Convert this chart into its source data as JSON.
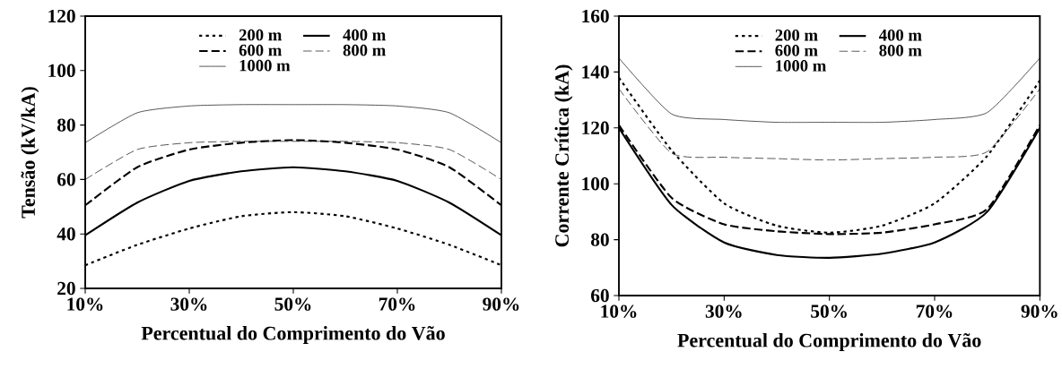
{
  "chart_data": [
    {
      "type": "line",
      "xlabel": "Percentual do Comprimento do Vão",
      "ylabel": "Tensão (kV/kA)",
      "x": [
        10,
        20,
        30,
        40,
        50,
        60,
        70,
        80,
        90
      ],
      "xlim": [
        10,
        90
      ],
      "ylim": [
        20,
        120
      ],
      "xticks": [
        {
          "value": 10,
          "label": "10%"
        },
        {
          "value": 30,
          "label": "30%"
        },
        {
          "value": 50,
          "label": "50%"
        },
        {
          "value": 70,
          "label": "70%"
        },
        {
          "value": 90,
          "label": "90%"
        }
      ],
      "yticks": [
        20,
        40,
        60,
        80,
        100,
        120
      ],
      "legend": "top",
      "grid": false,
      "marker": "none",
      "series": [
        {
          "name": "200 m",
          "color": "#000000",
          "line_style": "dotted",
          "values": [
            28.5,
            36,
            42,
            46.5,
            48,
            46.5,
            42,
            36,
            28.5
          ]
        },
        {
          "name": "400 m",
          "color": "#000000",
          "line_style": "solid",
          "values": [
            39.5,
            51.5,
            59.5,
            63,
            64.5,
            63,
            59.5,
            51.5,
            39.5
          ]
        },
        {
          "name": "600 m",
          "color": "#000000",
          "line_style": "dashed",
          "values": [
            50.5,
            64.5,
            71,
            73.5,
            74.5,
            73.5,
            71,
            64.5,
            50.5
          ]
        },
        {
          "name": "800 m",
          "color": "#000000",
          "line_style": "dashed",
          "values": [
            60,
            71,
            73.5,
            74,
            74,
            74,
            73.5,
            71,
            60
          ]
        },
        {
          "name": "1000 m",
          "color": "#000000",
          "line_style": "solid",
          "values": [
            73.5,
            84.5,
            87,
            87.5,
            87.5,
            87.5,
            87,
            84.5,
            73.5
          ]
        }
      ]
    },
    {
      "type": "line",
      "xlabel": "Percentual do Comprimento do Vão",
      "ylabel": "Corrente Crítica (kA)",
      "x": [
        10,
        20,
        30,
        40,
        50,
        60,
        70,
        80,
        90
      ],
      "xlim": [
        10,
        90
      ],
      "ylim": [
        60,
        160
      ],
      "xticks": [
        {
          "value": 10,
          "label": "10%"
        },
        {
          "value": 30,
          "label": "30%"
        },
        {
          "value": 50,
          "label": "50%"
        },
        {
          "value": 70,
          "label": "70%"
        },
        {
          "value": 90,
          "label": "90%"
        }
      ],
      "yticks": [
        60,
        80,
        100,
        120,
        140,
        160
      ],
      "legend": "top",
      "grid": false,
      "marker": "none",
      "series": [
        {
          "name": "200 m",
          "color": "#000000",
          "line_style": "dotted",
          "values": [
            138,
            112,
            93,
            85,
            82.5,
            85,
            93,
            110,
            137
          ]
        },
        {
          "name": "400 m",
          "color": "#000000",
          "line_style": "solid",
          "values": [
            120,
            92.5,
            79,
            74.5,
            73.5,
            75,
            79,
            90,
            120
          ]
        },
        {
          "name": "600 m",
          "color": "#000000",
          "line_style": "dashed",
          "values": [
            121,
            95,
            85.5,
            83,
            82,
            82.5,
            85.5,
            91,
            121
          ]
        },
        {
          "name": "800 m",
          "color": "#000000",
          "line_style": "dashed",
          "values": [
            134,
            111,
            109.5,
            109,
            108.5,
            109,
            109.5,
            111.5,
            134
          ]
        },
        {
          "name": "1000 m",
          "color": "#000000",
          "line_style": "solid",
          "values": [
            145,
            125,
            123,
            122,
            122,
            122,
            123,
            125.5,
            145
          ]
        }
      ]
    }
  ]
}
